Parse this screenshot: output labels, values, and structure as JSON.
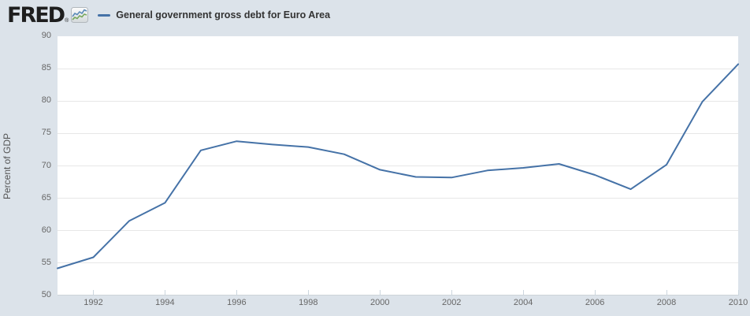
{
  "header": {
    "logo_text": "FRED",
    "registered_mark": "®",
    "legend": {
      "label": "General government gross debt for Euro Area",
      "line_color": "#4572a7"
    }
  },
  "chart_data": {
    "type": "line",
    "title": "General government gross debt for Euro Area",
    "ylabel": "Percent of GDP",
    "xlabel": "",
    "x": [
      1991,
      1992,
      1993,
      1994,
      1995,
      1996,
      1997,
      1998,
      1999,
      2000,
      2001,
      2002,
      2003,
      2004,
      2005,
      2006,
      2007,
      2008,
      2009,
      2010
    ],
    "series": [
      {
        "name": "General government gross debt for Euro Area",
        "color": "#4572a7",
        "values": [
          54.2,
          55.9,
          61.5,
          64.3,
          72.4,
          73.8,
          73.3,
          72.9,
          71.8,
          69.4,
          68.3,
          68.2,
          69.3,
          69.7,
          70.3,
          68.6,
          66.4,
          70.2,
          79.9,
          85.7
        ]
      }
    ],
    "ylim": [
      50,
      90
    ],
    "ytick_step": 5,
    "yticks": [
      50,
      55,
      60,
      65,
      70,
      75,
      80,
      85,
      90
    ],
    "xticks": [
      1992,
      1994,
      1996,
      1998,
      2000,
      2002,
      2004,
      2006,
      2008,
      2010
    ],
    "grid": "horizontal",
    "legend_position": "top-left"
  },
  "colors": {
    "background": "#dce3ea",
    "plot_background": "#ffffff",
    "gridline": "#e7e7e7",
    "axis_line": "#cdd3d8",
    "tick_mark": "#ccd6de",
    "axis_text": "#666666",
    "y_title_text": "#555555",
    "legend_text": "#333333",
    "series_line": "#4572a7",
    "logo_text": "#1e1e1e",
    "icon_blue": "#5b8bb8",
    "icon_green": "#78a85e"
  }
}
